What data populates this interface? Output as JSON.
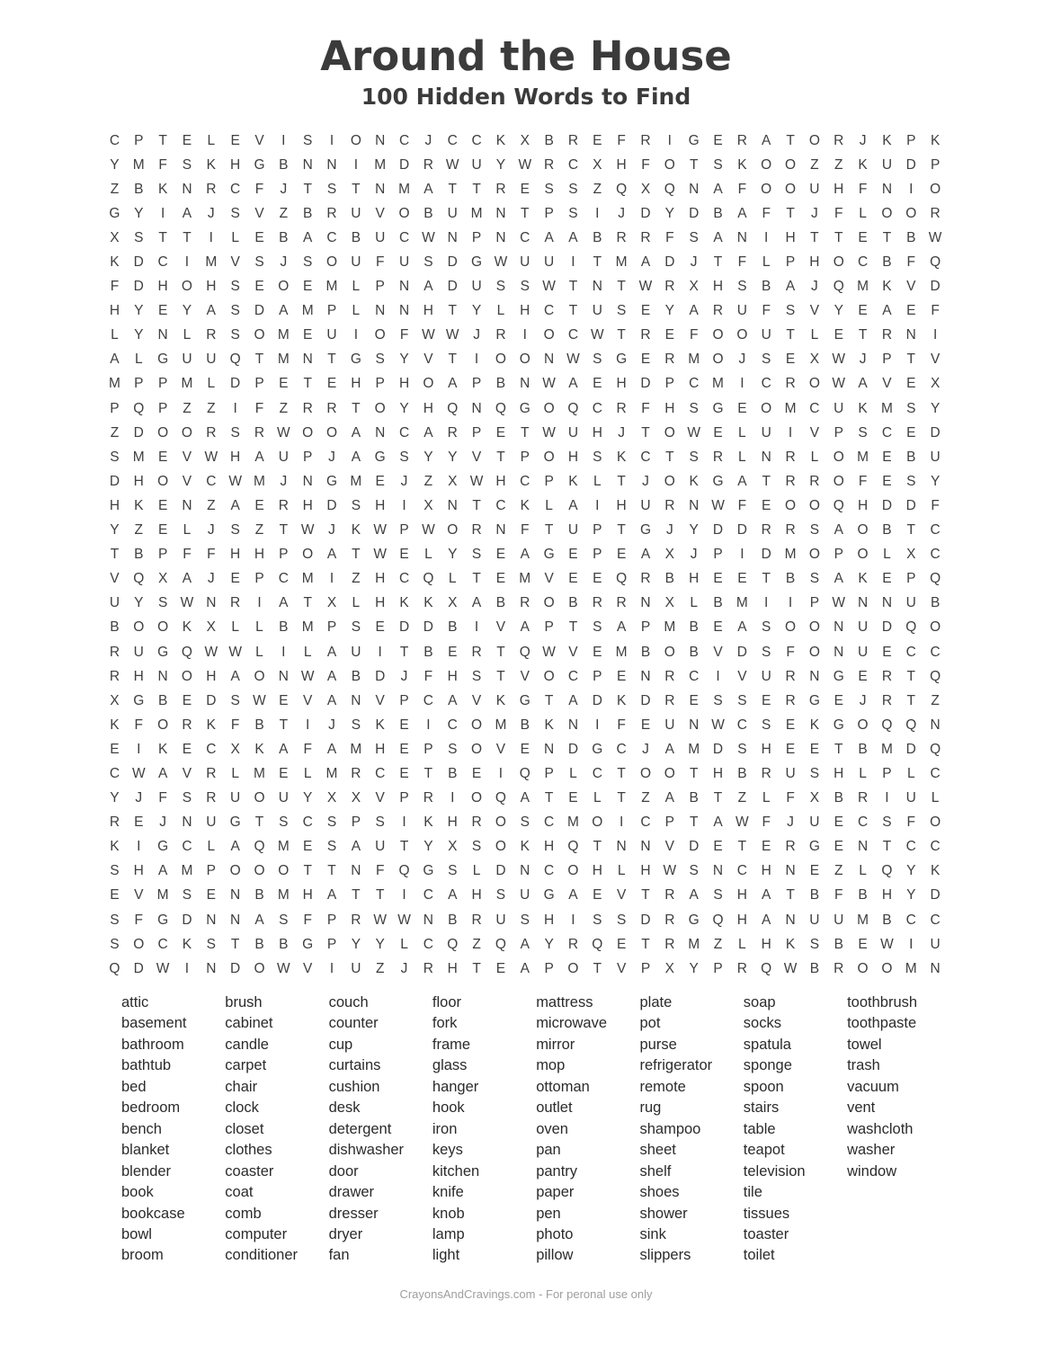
{
  "page": {
    "title": "Around the House",
    "subtitle": "100 Hidden Words to Find",
    "footer": "CrayonsAndCravings.com - For peronal use only"
  },
  "colors": {
    "title": "#3b3b3b",
    "grid_letter": "#404040",
    "word": "#2b2b2b",
    "footer": "#9e9e9e"
  },
  "grid": {
    "rows_count": 35,
    "cols_count": 35,
    "rows": [
      "CPTELEVISIONCJCCKXBREFRIGERATORJKPK",
      "YMFSKHGBNNIMDRWUYWRCXHFOTSKOOZZKUDP",
      "ZBKNRCFJTSTNMATTRESSZQXQNAFOOUHFNIO",
      "GYIAJSVZBRUVOBUMNTPSIJDYDBAFTJFLOOR",
      "XSTTILEBACBUCWNPNCAABRRFSANIHTTETBW",
      "KDCIMVSJSOUFUSDGWUUITMADJTFLPHOCBFQ",
      "FDHOHSEOEMLPNADUSSWTNTWRXHSBAJQMKVD",
      "HYEYASDAMPLNNHTYLHCTUSEYARUFSVYEAEF",
      "LYNLRSOMEUIOFWWJRIOCWTREFOOUTLETRNI",
      "ALGUUQTMNTGSYVTIOONWSGERMOJSEXWJPTV",
      "MPPMLDPETEHPHOAPBNWAEHDPCMICROWAVEX",
      "PQPZZIFZRRTOYHQNQGOQCRFHSGEOMCUKMSY",
      "ZDOORSRWOOANCARPETWUHJTOWELUIVPSCED",
      "SMEVWHAUPJAGSYYVTPOHSKCTSRLNRLOMEBU",
      "DHOVCWMJNGMEJZXWHCPKLTJOKGATRROFESY",
      "HKENZAERHDSHIXNTCKLAIHURNWFEOOQHDDF",
      "YZELJSZTWJKWPWORNFTUPTGJYDDRRSAOBTC",
      "TBPFFHHPOATWELYSEAGEPEAXJPIDMOPOLXC",
      "VQXAJEPCMIZHCQLTEMVEEQRBHEETBSAKEPQ",
      "UYSWNRIATXLHKKXABROBRRNXLBMIIPWNNUB",
      "BOOKXLLBMPSEDDBIVAPTSAPMBEASOONUDQO",
      "RUGQWWLILAUITBERTQWVEMBOBVDSFONUECC",
      "RHNOHAONWABDJFHSTVOCPENRCIVURNGERTQ",
      "XGBEDSWEVANVPCAVKGTADKDRESSERGEJRTZ",
      "KFORKFBTIJSKEICOMBKNIFEUNWCSEKGOQQN",
      "EIKECXKAFAMHEPSOVENDGCJAMDSHEETBMDQ",
      "CWAVRLMELMRCETBEIQPLCTOOTHBRUSHLPLC",
      "YJFSRUOUYXXVPRIOQATELTZABTZLFXBRIUL",
      "REJNUGTSCSPSIKHROSCMOICPTAWFJUECSFO",
      "KIGCLAQMESAUTYXSOKHQTNNVDETERGENTCC",
      "SHAMPOOOTTNFQGSLDNCOHLHWSNCHNEZLQYK",
      "EVMSENBMHATTICAHSUGAEVTRASHATBFBHYD",
      "SFGDNNASFPRWWNBRUSHISSDRGQHANUUMBCC",
      "SOCKSTBBGPYYLCQZQAYRQETRMZLHKSBEWIU",
      "QDWINDOWVIUZJRHTEAPOTVPXYPRQWBROOMN"
    ]
  },
  "word_list": {
    "total_words": 100,
    "columns": [
      [
        "attic",
        "basement",
        "bathroom",
        "bathtub",
        "bed",
        "bedroom",
        "bench",
        "blanket",
        "blender",
        "book",
        "bookcase",
        "bowl",
        "broom"
      ],
      [
        "brush",
        "cabinet",
        "candle",
        "carpet",
        "chair",
        "clock",
        "closet",
        "clothes",
        "coaster",
        "coat",
        "comb",
        "computer",
        "conditioner"
      ],
      [
        "couch",
        "counter",
        "cup",
        "curtains",
        "cushion",
        "desk",
        "detergent",
        "dishwasher",
        "door",
        "drawer",
        "dresser",
        "dryer",
        "fan"
      ],
      [
        "floor",
        "fork",
        "frame",
        "glass",
        "hanger",
        "hook",
        "iron",
        "keys",
        "kitchen",
        "knife",
        "knob",
        "lamp",
        "light"
      ],
      [
        "mattress",
        "microwave",
        "mirror",
        "mop",
        "ottoman",
        "outlet",
        "oven",
        "pan",
        "pantry",
        "paper",
        "pen",
        "photo",
        "pillow"
      ],
      [
        "plate",
        "pot",
        "purse",
        "refrigerator",
        "remote",
        "rug",
        "shampoo",
        "sheet",
        "shelf",
        "shoes",
        "shower",
        "sink",
        "slippers"
      ],
      [
        "soap",
        "socks",
        "spatula",
        "sponge",
        "spoon",
        "stairs",
        "table",
        "teapot",
        "television",
        "tile",
        "tissues",
        "toaster",
        "toilet"
      ],
      [
        "toothbrush",
        "toothpaste",
        "towel",
        "trash",
        "vacuum",
        "vent",
        "washcloth",
        "washer",
        "window"
      ]
    ]
  }
}
